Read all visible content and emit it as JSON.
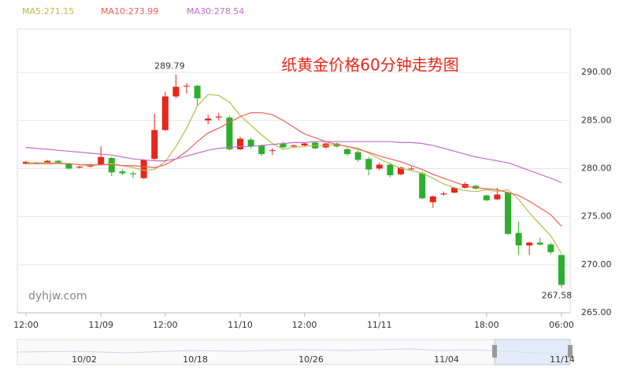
{
  "chart_data": {
    "type": "candlestick",
    "title": "纸黄金价格60分钟走势图",
    "watermark": "dyhjw.com",
    "up_color": "#e8261a",
    "down_color": "#2eae2e",
    "categories": [
      "12:00",
      null,
      null,
      null,
      null,
      null,
      null,
      "11/09",
      null,
      null,
      null,
      null,
      null,
      "12:00",
      null,
      null,
      null,
      null,
      null,
      null,
      "11/10",
      null,
      null,
      null,
      null,
      null,
      "12:00",
      null,
      null,
      null,
      null,
      null,
      null,
      "11/11",
      null,
      null,
      null,
      null,
      null,
      null,
      null,
      null,
      null,
      "18:00",
      null,
      null,
      null,
      null,
      null,
      null,
      "06:00"
    ],
    "candles": {
      "open": [
        280.5,
        280.6,
        280.6,
        280.8,
        280.5,
        280.1,
        280.2,
        280.4,
        281.1,
        279.7,
        279.5,
        279.0,
        281.0,
        284.0,
        287.5,
        288.6,
        288.6,
        285.0,
        285.3,
        285.3,
        282.0,
        283.0,
        282.4,
        281.9,
        282.6,
        282.3,
        282.4,
        282.7,
        282.2,
        282.6,
        282.0,
        281.7,
        281.0,
        280.0,
        280.4,
        279.4,
        280.0,
        279.5,
        276.5,
        277.3,
        277.5,
        278.0,
        278.2,
        277.2,
        276.8,
        277.5,
        273.3,
        272.0,
        272.3,
        272.1,
        271.0
      ],
      "close": [
        280.7,
        280.6,
        280.8,
        280.6,
        280.0,
        280.2,
        280.4,
        281.2,
        279.6,
        279.5,
        279.4,
        280.9,
        284.0,
        287.5,
        288.5,
        288.6,
        287.3,
        285.2,
        285.4,
        282.0,
        283.1,
        282.3,
        281.5,
        281.9,
        282.2,
        282.4,
        282.6,
        282.1,
        282.6,
        282.3,
        281.5,
        280.9,
        279.9,
        280.4,
        279.3,
        280.1,
        280.0,
        276.9,
        277.1,
        277.4,
        278.0,
        278.4,
        277.9,
        276.7,
        277.3,
        273.2,
        272.0,
        272.3,
        272.1,
        271.3,
        267.9
      ],
      "high": [
        280.8,
        280.7,
        280.9,
        280.9,
        280.6,
        280.3,
        280.5,
        282.3,
        281.2,
        279.9,
        279.7,
        281.0,
        285.7,
        288.0,
        289.79,
        288.9,
        288.7,
        285.6,
        285.8,
        285.5,
        283.3,
        283.2,
        282.5,
        282.1,
        282.8,
        282.5,
        282.7,
        282.8,
        282.7,
        282.7,
        282.2,
        281.9,
        281.2,
        280.6,
        280.6,
        280.2,
        280.2,
        279.7,
        277.2,
        277.6,
        278.1,
        278.6,
        278.3,
        277.3,
        278.0,
        277.6,
        274.5,
        272.4,
        272.8,
        272.3,
        271.1
      ],
      "low": [
        280.4,
        280.5,
        280.5,
        280.5,
        279.9,
        280.0,
        280.1,
        280.3,
        279.2,
        279.3,
        279.0,
        278.9,
        280.9,
        283.9,
        287.3,
        287.8,
        286.5,
        284.6,
        285.0,
        281.9,
        281.9,
        282.1,
        281.3,
        281.4,
        282.1,
        282.2,
        282.3,
        282.0,
        282.1,
        282.2,
        281.3,
        280.7,
        279.3,
        279.8,
        279.1,
        279.3,
        279.8,
        276.8,
        275.9,
        277.2,
        277.4,
        277.9,
        277.8,
        276.6,
        276.7,
        273.1,
        271.0,
        271.0,
        272.0,
        271.1,
        267.58
      ]
    },
    "lines": [
      {
        "name": "MA5:271.15",
        "color": "#b3c04a",
        "values": [
          280.6,
          280.6,
          280.6,
          280.6,
          280.5,
          280.4,
          280.3,
          280.4,
          280.5,
          280.3,
          280.1,
          279.8,
          279.9,
          280.7,
          282.3,
          284.2,
          286.5,
          287.7,
          287.6,
          286.9,
          285.5,
          284.5,
          283.5,
          282.6,
          282.0,
          282.2,
          282.3,
          282.4,
          282.4,
          282.5,
          282.3,
          282.1,
          281.6,
          281.0,
          280.5,
          280.0,
          279.8,
          279.5,
          279.0,
          278.4,
          278.0,
          277.7,
          277.6,
          277.8,
          277.6,
          277.8,
          276.8,
          275.4,
          274.2,
          273.0,
          271.15
        ]
      },
      {
        "name": "MA10:273.99",
        "color": "#f0605a",
        "values": [
          280.5,
          280.5,
          280.5,
          280.5,
          280.5,
          280.4,
          280.4,
          280.4,
          280.4,
          280.3,
          280.3,
          280.2,
          280.1,
          280.4,
          281.0,
          281.8,
          282.8,
          283.7,
          284.2,
          284.8,
          285.4,
          285.8,
          285.8,
          285.6,
          285.0,
          284.3,
          283.6,
          283.2,
          282.8,
          282.5,
          282.3,
          282.0,
          281.7,
          281.3,
          281.0,
          280.7,
          280.3,
          279.9,
          279.4,
          279.0,
          278.6,
          278.2,
          278.0,
          277.9,
          277.8,
          277.5,
          277.2,
          276.6,
          275.9,
          275.2,
          273.99
        ]
      },
      {
        "name": "MA30:278.54",
        "color": "#c070c8",
        "values": [
          282.2,
          282.1,
          282.0,
          281.9,
          281.8,
          281.7,
          281.6,
          281.5,
          281.4,
          281.2,
          281.0,
          280.9,
          280.8,
          280.8,
          281.0,
          281.3,
          281.6,
          281.9,
          282.1,
          282.2,
          282.3,
          282.3,
          282.4,
          282.5,
          282.6,
          282.7,
          282.7,
          282.8,
          282.8,
          282.8,
          282.8,
          282.8,
          282.8,
          282.8,
          282.8,
          282.7,
          282.7,
          282.6,
          282.4,
          282.1,
          281.8,
          281.5,
          281.2,
          281.0,
          280.8,
          280.6,
          280.2,
          279.8,
          279.4,
          279.0,
          278.54
        ]
      }
    ],
    "ylim": [
      265,
      294.5
    ],
    "yticks": [
      {
        "value": 265,
        "label": "265.00"
      },
      {
        "value": 270,
        "label": "270.00"
      },
      {
        "value": 275,
        "label": "275.00"
      },
      {
        "value": 280,
        "label": "280.00"
      },
      {
        "value": 285,
        "label": "285.00"
      },
      {
        "value": 290,
        "label": "290.00"
      }
    ],
    "grid": true,
    "navigator": {
      "labels": [
        "10/02",
        "10/18",
        "10/26",
        "11/04",
        "11/14"
      ]
    }
  }
}
